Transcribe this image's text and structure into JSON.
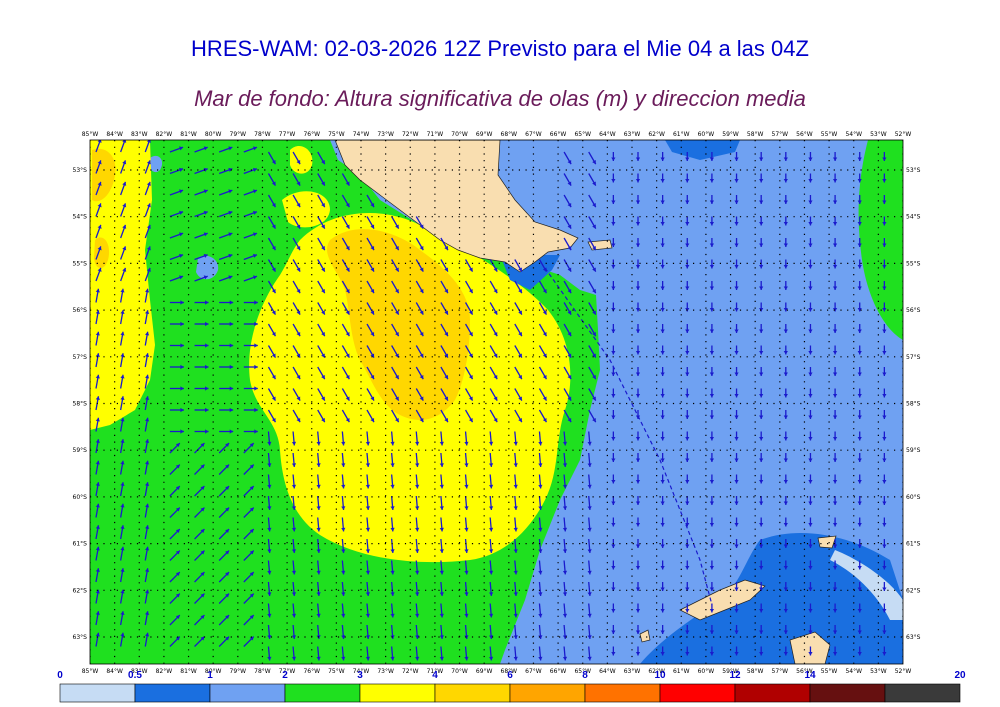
{
  "header": {
    "title": "HRES-WAM: 02-03-2026 12Z Previsto para el Mie 04 a las 04Z",
    "subtitle": "Mar de fondo: Altura significativa de olas (m) y direccion media"
  },
  "axes": {
    "lon_labels": [
      "85°W",
      "84°W",
      "83°W",
      "82°W",
      "81°W",
      "80°W",
      "79°W",
      "78°W",
      "77°W",
      "76°W",
      "75°W",
      "74°W",
      "73°W",
      "72°W",
      "71°W",
      "70°W",
      "69°W",
      "68°W",
      "67°W",
      "66°W",
      "65°W",
      "64°W",
      "63°W",
      "62°W",
      "61°W",
      "60°W",
      "59°W",
      "58°W",
      "57°W",
      "56°W",
      "55°W",
      "54°W",
      "53°W",
      "52°W"
    ],
    "lat_labels": [
      "53°S",
      "54°S",
      "55°S",
      "56°S",
      "57°S",
      "58°S",
      "59°S",
      "60°S",
      "61°S",
      "62°S",
      "63°S"
    ]
  },
  "colorbar": {
    "labels": [
      "0",
      "0.5",
      "1",
      "2",
      "3",
      "4",
      "6",
      "8",
      "10",
      "12",
      "14",
      "20"
    ],
    "colors": [
      "#c6dcf4",
      "#1a6fe0",
      "#6fa1f2",
      "#1fe01f",
      "#ffff00",
      "#ffd700",
      "#ffa500",
      "#ff7200",
      "#ff0000",
      "#b00000",
      "#661010",
      "#3a3a3a"
    ],
    "units": "m"
  },
  "colors": {
    "land": "#f9deb0",
    "arrow": "#1a1acc",
    "grid": "#000000",
    "title": "#0000cc",
    "subtitle": "#6a1b5a"
  }
}
